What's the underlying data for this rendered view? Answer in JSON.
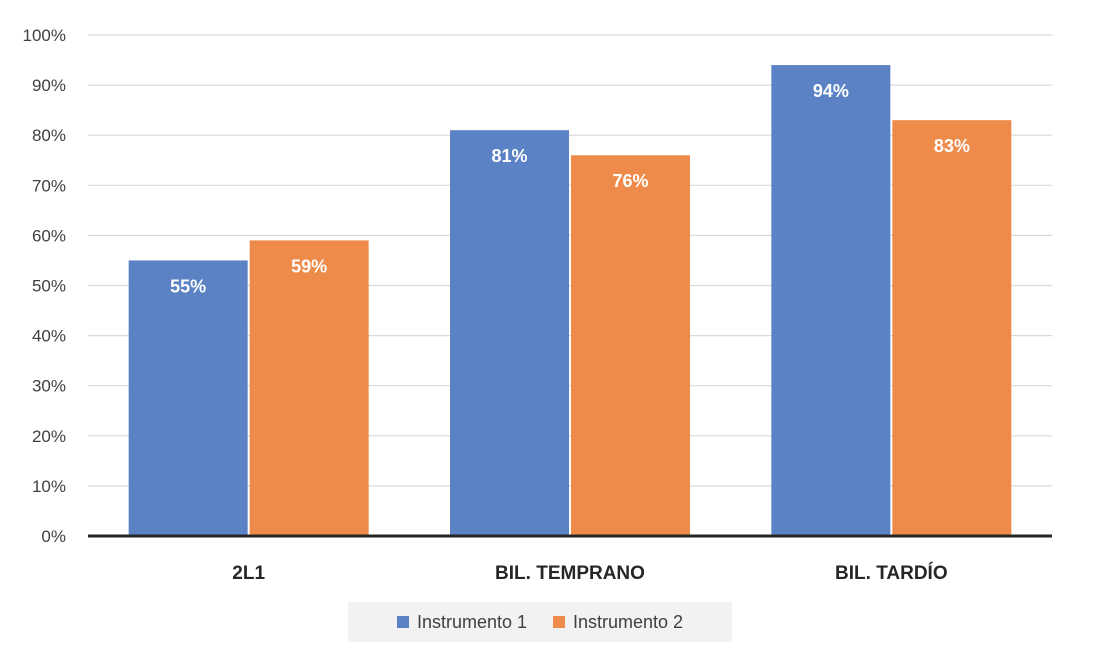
{
  "chart_data": {
    "type": "bar",
    "categories": [
      "2L1",
      "BIL. TEMPRANO",
      "BIL. TARDÍO"
    ],
    "series": [
      {
        "name": "Instrumento 1",
        "values": [
          55,
          81,
          94
        ],
        "labels": [
          "55%",
          "81%",
          "94%"
        ],
        "color": "#5b82c5"
      },
      {
        "name": "Instrumento 2",
        "values": [
          59,
          76,
          83
        ],
        "labels": [
          "59%",
          "76%",
          "83%"
        ],
        "color": "#ee8b4a"
      }
    ],
    "ylim": [
      0,
      100
    ],
    "ytick_values": [
      0,
      10,
      20,
      30,
      40,
      50,
      60,
      70,
      80,
      90,
      100
    ],
    "ytick_labels": [
      "0%",
      "10%",
      "20%",
      "30%",
      "40%",
      "50%",
      "60%",
      "70%",
      "80%",
      "90%",
      "100%"
    ],
    "grid": true,
    "legend_position": "bottom",
    "title": "",
    "xlabel": "",
    "ylabel": ""
  }
}
